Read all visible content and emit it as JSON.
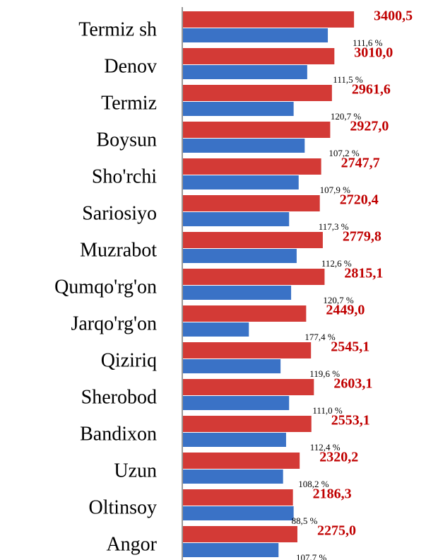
{
  "chart_data": {
    "type": "hbar",
    "categories": [
      "Termiz sh",
      "Denov",
      "Termiz",
      "Boysun",
      "Sho'rchi",
      "Sariosiyo",
      "Muzrabot",
      "Qumqo'rg'on",
      "Jarqo'rg'on",
      "Qiziriq",
      "Sherobod",
      "Bandixon",
      "Uzun",
      "Oltinsoy",
      "Angor"
    ],
    "series": [
      {
        "color": "#d33a36",
        "values": [
          3400.5,
          3010.0,
          2961.6,
          2927.0,
          2747.7,
          2720.4,
          2779.8,
          2815.1,
          2449.0,
          2545.1,
          2603.1,
          2553.1,
          2320.2,
          2186.3,
          2275.0
        ],
        "value_labels": [
          "3400,5",
          "3010,0",
          "2961,6",
          "2927,0",
          "2747,7",
          "2720,4",
          "2779,8",
          "2815,1",
          "2449,0",
          "2545,1",
          "2603,1",
          "2553,1",
          "2320,2",
          "2186,3",
          "2275,0"
        ]
      },
      {
        "color": "#3a72c6",
        "values": [
          2880,
          2470,
          2200,
          2420,
          2300,
          2110,
          2260,
          2150,
          1310,
          1940,
          2110,
          2050,
          1990,
          2200,
          1900
        ]
      }
    ],
    "annotations": [
      "111,6 %",
      "111,5 %",
      "120,7 %",
      "107,2 %",
      "107,9 %",
      "117,3 %",
      "112,6 %",
      "120,7 %",
      "177,4 %",
      "119,6 %",
      "111,0 %",
      "112,4 %",
      "108,2 %",
      "88,5 %",
      "107,7 %"
    ],
    "xlim": [
      0,
      5000
    ]
  }
}
